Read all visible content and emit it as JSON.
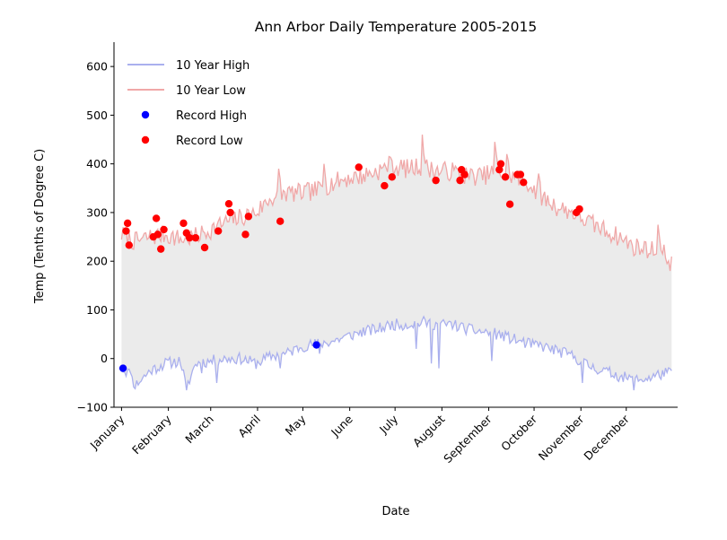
{
  "chart_data": {
    "type": "line",
    "title": "Ann Arbor Daily Temperature 2005-2015",
    "xlabel": "Date",
    "ylabel": "Temp (Tenths of Degree C)",
    "ylim": [
      -100,
      650
    ],
    "yticks": [
      -100,
      0,
      100,
      200,
      300,
      400,
      500,
      600
    ],
    "xlim": [
      -4,
      369
    ],
    "xticks": [
      {
        "day": 1,
        "label": "January"
      },
      {
        "day": 32,
        "label": "February"
      },
      {
        "day": 60,
        "label": "March"
      },
      {
        "day": 91,
        "label": "April"
      },
      {
        "day": 121,
        "label": "May"
      },
      {
        "day": 152,
        "label": "June"
      },
      {
        "day": 182,
        "label": "July"
      },
      {
        "day": 213,
        "label": "August"
      },
      {
        "day": 244,
        "label": "September"
      },
      {
        "day": 274,
        "label": "October"
      },
      {
        "day": 305,
        "label": "November"
      },
      {
        "day": 335,
        "label": "December"
      }
    ],
    "grid": false,
    "legend_position": "top-left",
    "fill_between": {
      "color": "#ebebeb"
    },
    "series": [
      {
        "name": "10 Year High",
        "kind": "line",
        "color": "#aab0ee",
        "anchors": [
          [
            1,
            -20
          ],
          [
            6,
            -30
          ],
          [
            10,
            -55
          ],
          [
            15,
            -40
          ],
          [
            20,
            -25
          ],
          [
            30,
            -10
          ],
          [
            40,
            -5
          ],
          [
            44,
            -60
          ],
          [
            50,
            -10
          ],
          [
            60,
            -5
          ],
          [
            70,
            0
          ],
          [
            80,
            0
          ],
          [
            90,
            -10
          ],
          [
            100,
            5
          ],
          [
            110,
            10
          ],
          [
            120,
            25
          ],
          [
            130,
            30
          ],
          [
            140,
            35
          ],
          [
            150,
            45
          ],
          [
            160,
            55
          ],
          [
            170,
            60
          ],
          [
            180,
            70
          ],
          [
            190,
            70
          ],
          [
            200,
            75
          ],
          [
            210,
            70
          ],
          [
            220,
            70
          ],
          [
            230,
            60
          ],
          [
            240,
            55
          ],
          [
            250,
            50
          ],
          [
            260,
            40
          ],
          [
            270,
            30
          ],
          [
            280,
            25
          ],
          [
            290,
            15
          ],
          [
            300,
            5
          ],
          [
            310,
            -15
          ],
          [
            320,
            -25
          ],
          [
            330,
            -35
          ],
          [
            340,
            -45
          ],
          [
            350,
            -40
          ],
          [
            360,
            -30
          ],
          [
            365,
            -30
          ]
        ],
        "dips": [
          [
            7,
            -30
          ],
          [
            44,
            -65
          ],
          [
            54,
            -30
          ],
          [
            64,
            -50
          ],
          [
            106,
            -20
          ],
          [
            132,
            10
          ],
          [
            196,
            20
          ],
          [
            206,
            -10
          ],
          [
            211,
            -20
          ],
          [
            246,
            -5
          ],
          [
            306,
            -50
          ],
          [
            340,
            -65
          ]
        ],
        "noise": 12,
        "seed": 11
      },
      {
        "name": "10 Year Low",
        "kind": "line",
        "color": "#f0a8a8",
        "anchors": [
          [
            1,
            255
          ],
          [
            10,
            240
          ],
          [
            20,
            250
          ],
          [
            30,
            255
          ],
          [
            40,
            245
          ],
          [
            50,
            250
          ],
          [
            60,
            265
          ],
          [
            70,
            280
          ],
          [
            80,
            290
          ],
          [
            90,
            300
          ],
          [
            100,
            330
          ],
          [
            110,
            340
          ],
          [
            120,
            340
          ],
          [
            130,
            345
          ],
          [
            140,
            360
          ],
          [
            150,
            370
          ],
          [
            160,
            375
          ],
          [
            170,
            385
          ],
          [
            180,
            395
          ],
          [
            190,
            390
          ],
          [
            200,
            395
          ],
          [
            210,
            385
          ],
          [
            220,
            385
          ],
          [
            230,
            375
          ],
          [
            240,
            375
          ],
          [
            250,
            385
          ],
          [
            260,
            375
          ],
          [
            270,
            360
          ],
          [
            280,
            330
          ],
          [
            290,
            310
          ],
          [
            300,
            300
          ],
          [
            310,
            280
          ],
          [
            320,
            265
          ],
          [
            330,
            250
          ],
          [
            340,
            230
          ],
          [
            350,
            225
          ],
          [
            360,
            215
          ],
          [
            365,
            195
          ]
        ],
        "spikes": [
          [
            105,
            390
          ],
          [
            135,
            400
          ],
          [
            178,
            415
          ],
          [
            200,
            460
          ],
          [
            248,
            445
          ],
          [
            256,
            420
          ],
          [
            277,
            380
          ],
          [
            356,
            275
          ]
        ],
        "noise": 20,
        "seed": 7
      },
      {
        "name": "Record High",
        "kind": "scatter",
        "color": "#0000ff",
        "points": [
          [
            2,
            -20
          ],
          [
            130,
            28
          ]
        ]
      },
      {
        "name": "Record Low",
        "kind": "scatter",
        "color": "#ff0000",
        "points": [
          [
            4,
            262
          ],
          [
            5,
            278
          ],
          [
            6,
            233
          ],
          [
            22,
            250
          ],
          [
            24,
            288
          ],
          [
            25,
            255
          ],
          [
            27,
            225
          ],
          [
            29,
            265
          ],
          [
            42,
            278
          ],
          [
            44,
            258
          ],
          [
            46,
            248
          ],
          [
            50,
            248
          ],
          [
            56,
            228
          ],
          [
            65,
            262
          ],
          [
            72,
            318
          ],
          [
            73,
            300
          ],
          [
            83,
            255
          ],
          [
            85,
            292
          ],
          [
            106,
            282
          ],
          [
            158,
            393
          ],
          [
            175,
            355
          ],
          [
            180,
            373
          ],
          [
            209,
            366
          ],
          [
            225,
            366
          ],
          [
            226,
            388
          ],
          [
            228,
            378
          ],
          [
            251,
            388
          ],
          [
            252,
            400
          ],
          [
            255,
            373
          ],
          [
            258,
            317
          ],
          [
            263,
            378
          ],
          [
            265,
            378
          ],
          [
            267,
            362
          ],
          [
            302,
            300
          ],
          [
            304,
            307
          ]
        ]
      }
    ]
  }
}
